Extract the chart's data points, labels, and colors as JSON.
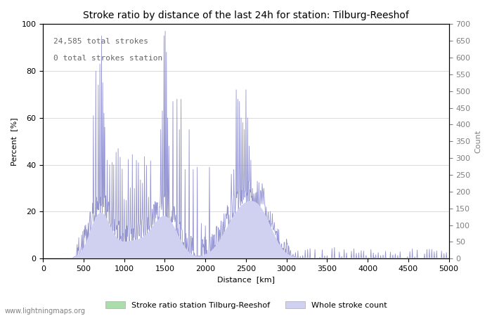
{
  "title": "Stroke ratio by distance of the last 24h for station: Tilburg-Reeshof",
  "xlabel": "Distance  [km]",
  "ylabel_left": "Percent  [%]",
  "ylabel_right": "Count",
  "annotation_line1": "24,585 total strokes",
  "annotation_line2": "0 total strokes station",
  "legend_label1": "Stroke ratio station Tilburg-Reeshof",
  "legend_label2": "Whole stroke count",
  "watermark": "www.lightningmaps.org",
  "xlim": [
    0,
    5000
  ],
  "ylim_left": [
    0,
    100
  ],
  "ylim_right": [
    0,
    700
  ],
  "fill_color_station": "#aaddaa",
  "fill_color_count": "#d0d0f0",
  "line_color": "#8888cc",
  "background_color": "#ffffff",
  "grid_color": "#cccccc",
  "title_fontsize": 10,
  "label_fontsize": 8,
  "tick_fontsize": 8,
  "annotation_fontsize": 8,
  "watermark_fontsize": 7
}
